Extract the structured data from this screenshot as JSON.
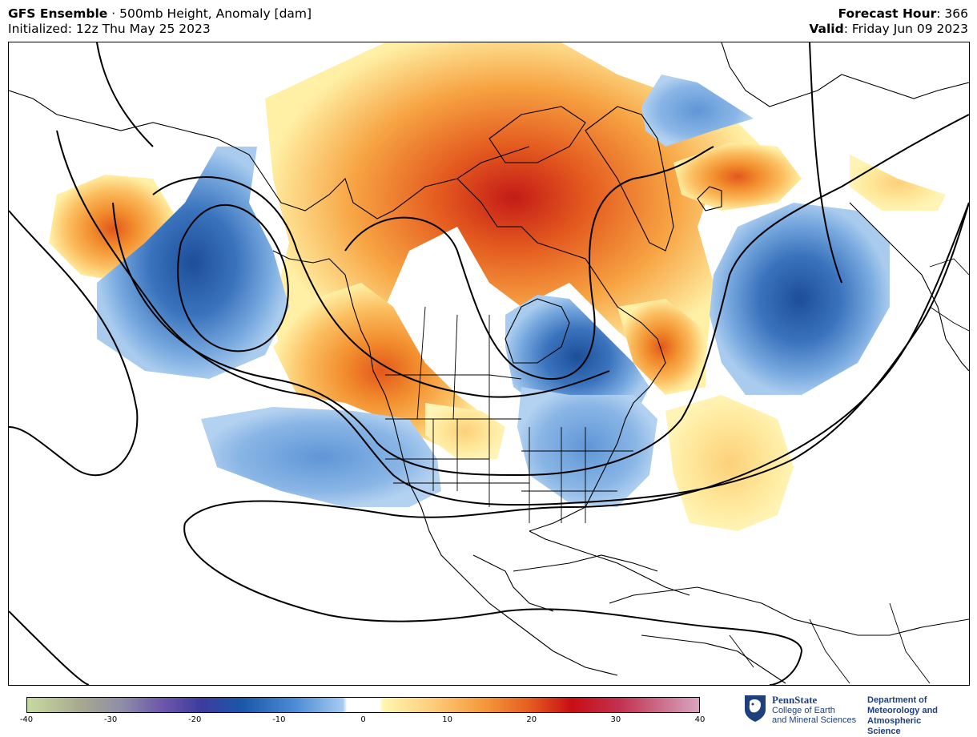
{
  "header": {
    "model": "GFS Ensemble",
    "separator": " · ",
    "product": "500mb Height, Anomaly [dam]",
    "initialized": "Initialized: 12z Thu May 25 2023",
    "forecast_hour_label": "Forecast Hour",
    "forecast_hour_value": ": 366",
    "valid_label": "Valid",
    "valid_value": ": Friday Jun 09 2023"
  },
  "colorbar": {
    "ticks": [
      "-40",
      "-30",
      "-20",
      "-10",
      "0",
      "10",
      "20",
      "30",
      "40"
    ],
    "min": -40,
    "max": 40,
    "neutral_band": [
      -2,
      2
    ]
  },
  "logos": {
    "psu_name": "PennState",
    "psu_college_line1": "College of Earth",
    "psu_college_line2": "and Mineral Sciences",
    "dept_line1": "Department of",
    "dept_line2": "Meteorology and",
    "dept_line3": "Atmospheric Science"
  },
  "colors": {
    "positive_strong": "#c3121b",
    "positive_mid": "#f08a2c",
    "positive_weak": "#fff2a8",
    "negative_strong": "#1a4f9a",
    "negative_mid": "#4f8fd4",
    "negative_weak": "#9cc2ea",
    "psu_blue": "#1e407c"
  }
}
